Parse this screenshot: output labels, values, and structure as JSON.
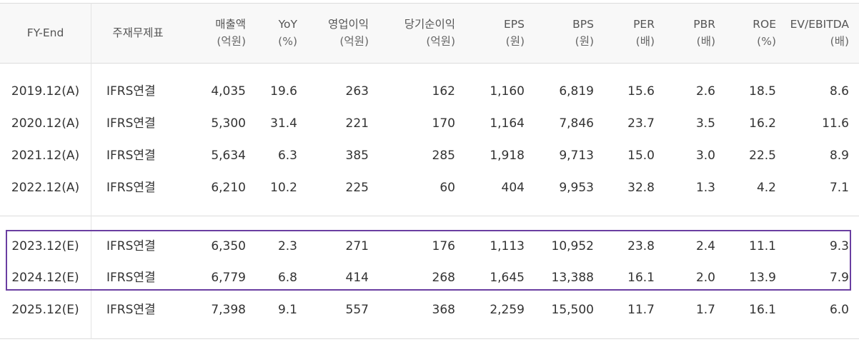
{
  "table": {
    "headers": [
      {
        "line1": "FY-End",
        "line2": ""
      },
      {
        "line1": "주재무제표",
        "line2": ""
      },
      {
        "line1": "매출액",
        "line2": "(억원)"
      },
      {
        "line1": "YoY",
        "line2": "(%)"
      },
      {
        "line1": "영업이익",
        "line2": "(억원)"
      },
      {
        "line1": "당기순이익",
        "line2": "(억원)"
      },
      {
        "line1": "EPS",
        "line2": "(원)"
      },
      {
        "line1": "BPS",
        "line2": "(원)"
      },
      {
        "line1": "PER",
        "line2": "(배)"
      },
      {
        "line1": "PBR",
        "line2": "(배)"
      },
      {
        "line1": "ROE",
        "line2": "(%)"
      },
      {
        "line1": "EV/EBITDA",
        "line2": "(배)"
      }
    ],
    "rows": [
      [
        "2019.12(A)",
        "IFRS연결",
        "4,035",
        "19.6",
        "263",
        "162",
        "1,160",
        "6,819",
        "15.6",
        "2.6",
        "18.5",
        "8.6"
      ],
      [
        "2020.12(A)",
        "IFRS연결",
        "5,300",
        "31.4",
        "221",
        "170",
        "1,164",
        "7,846",
        "23.7",
        "3.5",
        "16.2",
        "11.6"
      ],
      [
        "2021.12(A)",
        "IFRS연결",
        "5,634",
        "6.3",
        "385",
        "285",
        "1,918",
        "9,713",
        "15.0",
        "3.0",
        "22.5",
        "8.9"
      ],
      [
        "2022.12(A)",
        "IFRS연결",
        "6,210",
        "10.2",
        "225",
        "60",
        "404",
        "9,953",
        "32.8",
        "1.3",
        "4.2",
        "7.1"
      ],
      [
        "2023.12(E)",
        "IFRS연결",
        "6,350",
        "2.3",
        "271",
        "176",
        "1,113",
        "10,952",
        "23.8",
        "2.4",
        "11.1",
        "9.3"
      ],
      [
        "2024.12(E)",
        "IFRS연결",
        "6,779",
        "6.8",
        "414",
        "268",
        "1,645",
        "13,388",
        "16.1",
        "2.0",
        "13.9",
        "7.9"
      ],
      [
        "2025.12(E)",
        "IFRS연결",
        "7,398",
        "9.1",
        "557",
        "368",
        "2,259",
        "15,500",
        "11.7",
        "1.7",
        "16.1",
        "6.0"
      ]
    ],
    "highlight_color": "#6a3ea1"
  }
}
